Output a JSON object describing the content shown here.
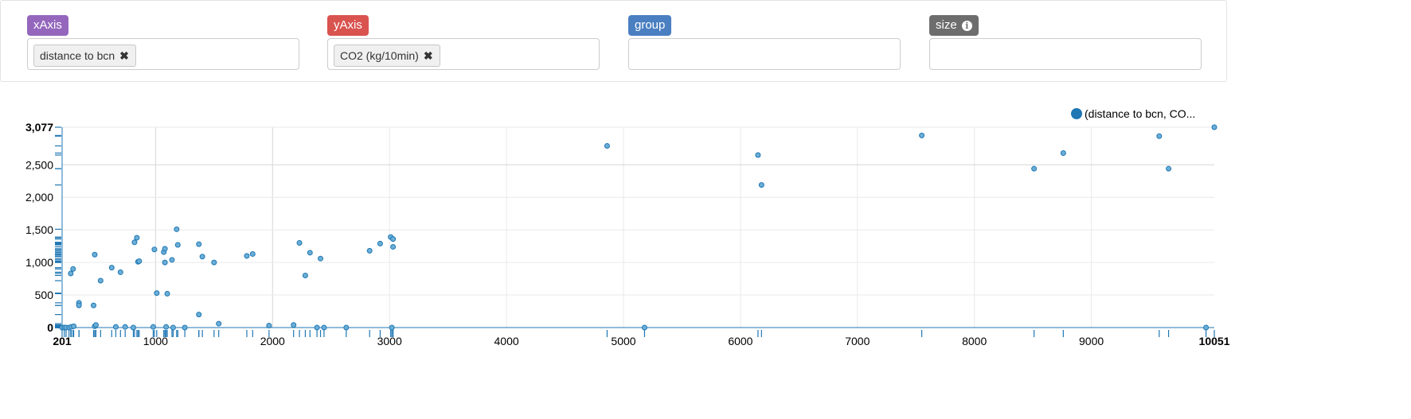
{
  "controls": {
    "x_axis": {
      "label": "xAxis",
      "color": "#9467bd",
      "value": "distance to bcn",
      "remove": "✖"
    },
    "y_axis": {
      "label": "yAxis",
      "color": "#d9534f",
      "value": "CO2 (kg/10min)",
      "remove": "✖"
    },
    "group": {
      "label": "group",
      "color": "#4a7fc1",
      "value": ""
    },
    "size": {
      "label": "size",
      "color": "#6d6d6d",
      "value": "",
      "info_icon": "info-circle-icon",
      "info_glyph": "i"
    }
  },
  "chart_data": {
    "type": "scatter",
    "legend": {
      "label": "(distance to bcn, CO...",
      "color": "#1f77b4",
      "position": "top-right"
    },
    "xlim": [
      201,
      10051
    ],
    "ylim": [
      0,
      3077
    ],
    "x_ticks": [
      1000,
      2000,
      3000,
      4000,
      5000,
      6000,
      7000,
      8000,
      9000
    ],
    "y_ticks": [
      500,
      1000,
      1500,
      2000,
      2500
    ],
    "x_min_label": "201",
    "x_max_label": "10051",
    "y_max_label": "3077",
    "grid": true,
    "point_color": "#6baed6",
    "point_stroke": "#1f77b4",
    "points": [
      [
        201,
        0
      ],
      [
        220,
        0
      ],
      [
        235,
        0
      ],
      [
        260,
        0
      ],
      [
        280,
        10
      ],
      [
        300,
        20
      ],
      [
        275,
        830
      ],
      [
        295,
        900
      ],
      [
        345,
        380
      ],
      [
        345,
        340
      ],
      [
        470,
        340
      ],
      [
        480,
        1120
      ],
      [
        480,
        20
      ],
      [
        490,
        40
      ],
      [
        530,
        720
      ],
      [
        625,
        920
      ],
      [
        660,
        10
      ],
      [
        700,
        850
      ],
      [
        740,
        10
      ],
      [
        820,
        1310
      ],
      [
        810,
        0
      ],
      [
        850,
        1010
      ],
      [
        860,
        1020
      ],
      [
        840,
        1380
      ],
      [
        980,
        10
      ],
      [
        990,
        1200
      ],
      [
        1010,
        530
      ],
      [
        1070,
        1160
      ],
      [
        1080,
        1210
      ],
      [
        1090,
        10
      ],
      [
        1080,
        1000
      ],
      [
        1100,
        520
      ],
      [
        1140,
        1040
      ],
      [
        1150,
        0
      ],
      [
        1180,
        1510
      ],
      [
        1190,
        1270
      ],
      [
        1250,
        0
      ],
      [
        1370,
        200
      ],
      [
        1370,
        1280
      ],
      [
        1400,
        1090
      ],
      [
        1500,
        1000
      ],
      [
        1540,
        60
      ],
      [
        1780,
        1100
      ],
      [
        1830,
        1130
      ],
      [
        1970,
        30
      ],
      [
        2180,
        40
      ],
      [
        2230,
        1300
      ],
      [
        2280,
        800
      ],
      [
        2320,
        1150
      ],
      [
        2380,
        0
      ],
      [
        2410,
        1060
      ],
      [
        2440,
        0
      ],
      [
        2630,
        0
      ],
      [
        2830,
        1180
      ],
      [
        2920,
        1290
      ],
      [
        3010,
        1390
      ],
      [
        3020,
        0
      ],
      [
        3030,
        1360
      ],
      [
        3030,
        1240
      ],
      [
        4860,
        2790
      ],
      [
        5180,
        0
      ],
      [
        6150,
        2650
      ],
      [
        6180,
        2190
      ],
      [
        7550,
        2950
      ],
      [
        8510,
        2440
      ],
      [
        8760,
        2680
      ],
      [
        9580,
        2940
      ],
      [
        9660,
        2440
      ],
      [
        9980,
        0
      ],
      [
        10051,
        3077
      ]
    ]
  }
}
